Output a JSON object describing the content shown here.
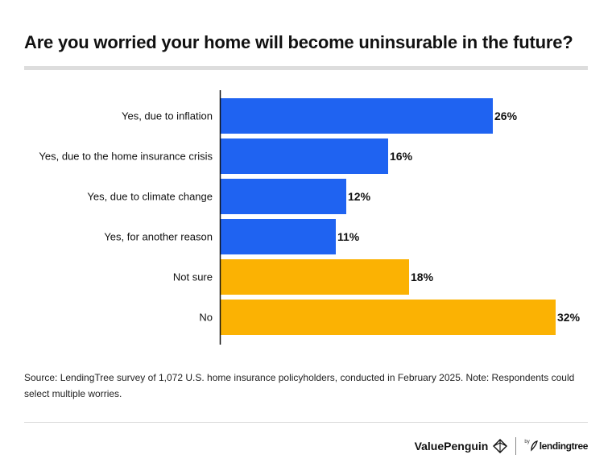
{
  "title": "Are you worried your home will become uninsurable in the future?",
  "source": "Source: LendingTree survey of 1,072 U.S. home insurance policyholders, conducted in February 2025. Note: Respondents could select multiple worries.",
  "branding": {
    "valuepenguin": "ValuePenguin",
    "by": "by",
    "lendingtree": "lendingtree"
  },
  "colors": {
    "yes": "#1f63f1",
    "other": "#fbb203"
  },
  "chart_data": {
    "type": "bar",
    "orientation": "horizontal",
    "categories": [
      "Yes, due to inflation",
      "Yes, due to the home insurance crisis",
      "Yes, due to climate change",
      "Yes, for another reason",
      "Not sure",
      "No"
    ],
    "values": [
      26,
      16,
      12,
      11,
      18,
      32
    ],
    "value_labels": [
      "26%",
      "16%",
      "12%",
      "11%",
      "18%",
      "32%"
    ],
    "bar_colors": [
      "#1f63f1",
      "#1f63f1",
      "#1f63f1",
      "#1f63f1",
      "#fbb203",
      "#fbb203"
    ],
    "xlim": [
      0,
      32
    ],
    "grid": false,
    "legend": "none"
  }
}
